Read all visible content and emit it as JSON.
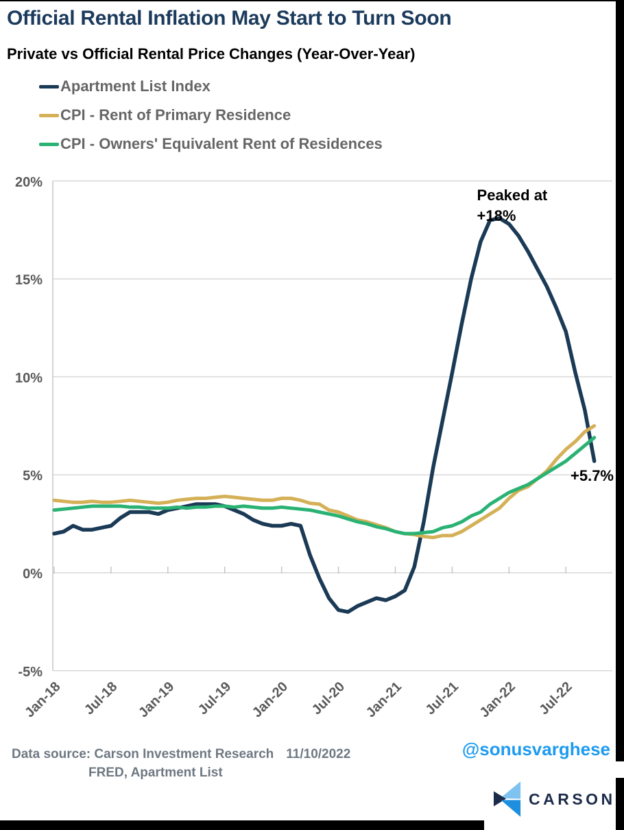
{
  "header": {
    "title": "Official Rental Inflation May Start to Turn Soon",
    "subtitle": "Private vs Official Rental Price Changes (Year-Over-Year)"
  },
  "legend": [
    {
      "label": "Apartment List Index",
      "color": "#1B3A56"
    },
    {
      "label": "CPI - Rent of Primary Residence",
      "color": "#D4B056"
    },
    {
      "label": "CPI - Owners' Equivalent Rent of Residences",
      "color": "#2AB274"
    }
  ],
  "chart_data": {
    "type": "line",
    "title": "Private vs Official Rental Price Changes (Year-Over-Year)",
    "xlabel": "",
    "ylabel": "",
    "ylim": [
      -5,
      20
    ],
    "grid": "horizontal",
    "legend_position": "top-left",
    "colors": {
      "grid": "#D9D9D9",
      "axis": "#C6C6C6"
    },
    "y_ticks": [
      20,
      15,
      10,
      5,
      0,
      -5
    ],
    "y_tick_labels": [
      "20%",
      "15%",
      "10%",
      "5%",
      "0%",
      "-5%"
    ],
    "x_tick_labels": [
      "Jan-18",
      "Jul-18",
      "Jan-19",
      "Jul-19",
      "Jan-20",
      "Jul-20",
      "Jan-21",
      "Jul-21",
      "Jan-22",
      "Jul-22"
    ],
    "x": [
      "Jan-18",
      "Feb-18",
      "Mar-18",
      "Apr-18",
      "May-18",
      "Jun-18",
      "Jul-18",
      "Aug-18",
      "Sep-18",
      "Oct-18",
      "Nov-18",
      "Dec-18",
      "Jan-19",
      "Feb-19",
      "Mar-19",
      "Apr-19",
      "May-19",
      "Jun-19",
      "Jul-19",
      "Aug-19",
      "Sep-19",
      "Oct-19",
      "Nov-19",
      "Dec-19",
      "Jan-20",
      "Feb-20",
      "Mar-20",
      "Apr-20",
      "May-20",
      "Jun-20",
      "Jul-20",
      "Aug-20",
      "Sep-20",
      "Oct-20",
      "Nov-20",
      "Dec-20",
      "Jan-21",
      "Feb-21",
      "Mar-21",
      "Apr-21",
      "May-21",
      "Jun-21",
      "Jul-21",
      "Aug-21",
      "Sep-21",
      "Oct-21",
      "Nov-21",
      "Dec-21",
      "Jan-22",
      "Feb-22",
      "Mar-22",
      "Apr-22",
      "May-22",
      "Jun-22",
      "Jul-22",
      "Aug-22",
      "Sep-22",
      "Oct-22"
    ],
    "series": [
      {
        "id": "apartment-list",
        "name": "Apartment List Index",
        "color": "#1B3A56",
        "width": 5.5,
        "values": [
          2.0,
          2.1,
          2.4,
          2.2,
          2.2,
          2.3,
          2.4,
          2.8,
          3.1,
          3.1,
          3.1,
          3.0,
          3.2,
          3.3,
          3.4,
          3.5,
          3.5,
          3.5,
          3.4,
          3.2,
          3.0,
          2.7,
          2.5,
          2.4,
          2.4,
          2.5,
          2.4,
          0.9,
          -0.3,
          -1.3,
          -1.9,
          -2.0,
          -1.7,
          -1.5,
          -1.3,
          -1.4,
          -1.2,
          -0.9,
          0.3,
          2.6,
          5.4,
          7.8,
          10.2,
          12.7,
          15.0,
          16.9,
          18.0,
          18.1,
          17.8,
          17.2,
          16.4,
          15.5,
          14.6,
          13.5,
          12.3,
          10.2,
          8.3,
          5.7
        ]
      },
      {
        "id": "cpi-rent",
        "name": "CPI - Rent of Primary Residence",
        "color": "#D4B056",
        "width": 5,
        "values": [
          3.7,
          3.65,
          3.6,
          3.6,
          3.65,
          3.6,
          3.6,
          3.65,
          3.7,
          3.65,
          3.6,
          3.55,
          3.6,
          3.7,
          3.75,
          3.8,
          3.8,
          3.85,
          3.9,
          3.85,
          3.8,
          3.75,
          3.7,
          3.7,
          3.8,
          3.8,
          3.7,
          3.55,
          3.5,
          3.2,
          3.1,
          2.9,
          2.7,
          2.6,
          2.45,
          2.3,
          2.1,
          2.0,
          1.95,
          1.85,
          1.8,
          1.9,
          1.9,
          2.1,
          2.4,
          2.7,
          3.0,
          3.3,
          3.8,
          4.2,
          4.4,
          4.8,
          5.2,
          5.8,
          6.3,
          6.7,
          7.2,
          7.5
        ]
      },
      {
        "id": "cpi-oer",
        "name": "CPI - Owners' Equivalent Rent of Residences",
        "color": "#2AB274",
        "width": 5,
        "values": [
          3.2,
          3.25,
          3.3,
          3.35,
          3.4,
          3.4,
          3.4,
          3.4,
          3.35,
          3.35,
          3.3,
          3.3,
          3.3,
          3.35,
          3.3,
          3.35,
          3.35,
          3.4,
          3.4,
          3.35,
          3.4,
          3.35,
          3.3,
          3.3,
          3.35,
          3.3,
          3.25,
          3.2,
          3.1,
          3.0,
          2.9,
          2.75,
          2.6,
          2.5,
          2.35,
          2.25,
          2.1,
          2.0,
          2.0,
          2.05,
          2.1,
          2.3,
          2.4,
          2.6,
          2.9,
          3.1,
          3.5,
          3.8,
          4.1,
          4.3,
          4.5,
          4.8,
          5.1,
          5.4,
          5.7,
          6.1,
          6.5,
          6.9
        ]
      }
    ],
    "annotations": [
      {
        "id": "peak-annotation",
        "lines": [
          "Peaked at",
          "+18%"
        ]
      },
      {
        "id": "latest-annotation",
        "lines": [
          "+5.7%"
        ]
      }
    ]
  },
  "footer": {
    "source_line1": "Data source: Carson Investment Research",
    "date": "11/10/2022",
    "source_line2": "FRED, Apartment List",
    "handle": "@sonusvarghese"
  },
  "branding": {
    "wordmark": "CARSON",
    "logo_colors": {
      "light": "#7EC3EF",
      "dark": "#1C2B4A",
      "mid": "#1E8EDE"
    }
  }
}
